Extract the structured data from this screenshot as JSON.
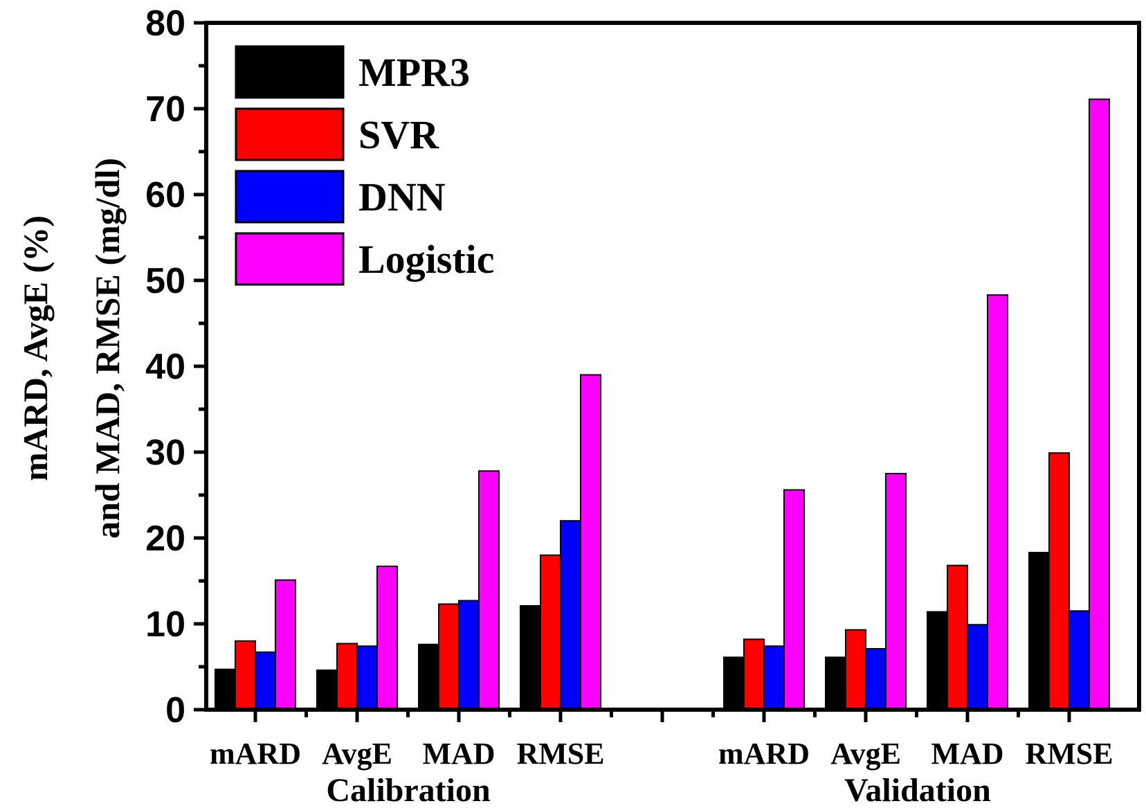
{
  "chart_data": {
    "type": "bar",
    "title": "",
    "ylabel_lines": [
      "mARD, AvgE (%)",
      "and MAD, RMSE (mg/dl)"
    ],
    "ylim": [
      0,
      80
    ],
    "yticks": [
      0,
      10,
      20,
      30,
      40,
      50,
      60,
      70,
      80
    ],
    "grid": false,
    "legend_position": "top-left",
    "groups": [
      {
        "name": "Calibration",
        "categories": [
          "mARD",
          "AvgE",
          "MAD",
          "RMSE"
        ]
      },
      {
        "name": "Validation",
        "categories": [
          "mARD",
          "AvgE",
          "MAD",
          "RMSE"
        ]
      }
    ],
    "series": [
      {
        "name": "MPR3",
        "color": "#000000",
        "values": [
          4.7,
          4.6,
          7.6,
          12.1,
          6.1,
          6.1,
          11.4,
          18.3
        ]
      },
      {
        "name": "SVR",
        "color": "#ff0000",
        "values": [
          8.0,
          7.7,
          12.3,
          18.0,
          8.2,
          9.3,
          16.8,
          29.9
        ]
      },
      {
        "name": "DNN",
        "color": "#0000ff",
        "values": [
          6.7,
          7.4,
          12.7,
          22.0,
          7.4,
          7.1,
          9.9,
          11.5
        ]
      },
      {
        "name": "Logistic",
        "color": "#ff00ff",
        "values": [
          15.1,
          16.7,
          27.8,
          39.0,
          25.6,
          27.5,
          48.3,
          71.1
        ]
      }
    ]
  }
}
